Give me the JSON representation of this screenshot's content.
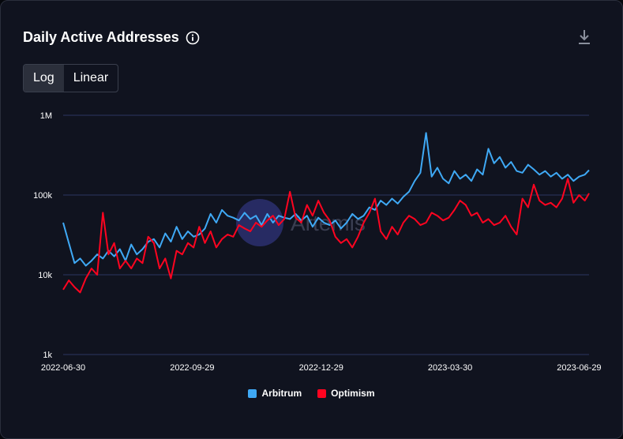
{
  "header": {
    "title": "Daily Active Addresses",
    "info_icon": "info-circle-icon",
    "download_icon": "download-icon"
  },
  "scale_toggle": {
    "options": [
      "Log",
      "Linear"
    ],
    "selected": "Log"
  },
  "watermark": "Artemis",
  "colors": {
    "arbitrum": "#3fa9f5",
    "optimism": "#ff0420",
    "grid": "#2c3560",
    "background": "#10131f"
  },
  "chart_data": {
    "type": "line",
    "title": "Daily Active Addresses",
    "yscale": "log",
    "ylim": [
      1000,
      1000000
    ],
    "yticks": [
      {
        "value": 1000,
        "label": "1k"
      },
      {
        "value": 10000,
        "label": "10k"
      },
      {
        "value": 100000,
        "label": "100k"
      },
      {
        "value": 1000000,
        "label": "1M"
      }
    ],
    "xlim": [
      "2022-06-30",
      "2023-07-06"
    ],
    "xticks": [
      "2022-06-30",
      "2022-09-29",
      "2022-12-29",
      "2023-03-30",
      "2023-06-29"
    ],
    "series": [
      {
        "name": "Arbitrum",
        "color": "#3fa9f5",
        "dates": [
          "2022-06-30",
          "2022-07-04",
          "2022-07-08",
          "2022-07-12",
          "2022-07-16",
          "2022-07-20",
          "2022-07-24",
          "2022-07-28",
          "2022-08-01",
          "2022-08-05",
          "2022-08-09",
          "2022-08-13",
          "2022-08-17",
          "2022-08-21",
          "2022-08-25",
          "2022-08-29",
          "2022-09-02",
          "2022-09-06",
          "2022-09-10",
          "2022-09-14",
          "2022-09-18",
          "2022-09-22",
          "2022-09-26",
          "2022-09-30",
          "2022-10-04",
          "2022-10-08",
          "2022-10-12",
          "2022-10-16",
          "2022-10-20",
          "2022-10-24",
          "2022-10-28",
          "2022-11-01",
          "2022-11-05",
          "2022-11-09",
          "2022-11-13",
          "2022-11-17",
          "2022-11-21",
          "2022-11-25",
          "2022-11-29",
          "2022-12-03",
          "2022-12-07",
          "2022-12-11",
          "2022-12-15",
          "2022-12-19",
          "2022-12-23",
          "2022-12-27",
          "2022-12-31",
          "2023-01-04",
          "2023-01-08",
          "2023-01-12",
          "2023-01-16",
          "2023-01-20",
          "2023-01-24",
          "2023-01-28",
          "2023-02-01",
          "2023-02-05",
          "2023-02-09",
          "2023-02-13",
          "2023-02-17",
          "2023-02-21",
          "2023-02-25",
          "2023-03-01",
          "2023-03-05",
          "2023-03-09",
          "2023-03-13",
          "2023-03-17",
          "2023-03-21",
          "2023-03-25",
          "2023-03-29",
          "2023-04-02",
          "2023-04-06",
          "2023-04-10",
          "2023-04-14",
          "2023-04-18",
          "2023-04-22",
          "2023-04-26",
          "2023-04-30",
          "2023-05-04",
          "2023-05-08",
          "2023-05-12",
          "2023-05-16",
          "2023-05-20",
          "2023-05-24",
          "2023-05-28",
          "2023-06-01",
          "2023-06-05",
          "2023-06-09",
          "2023-06-13",
          "2023-06-17",
          "2023-06-21",
          "2023-06-25",
          "2023-06-29",
          "2023-07-03",
          "2023-07-06"
        ],
        "values": [
          45000,
          25000,
          14000,
          16000,
          13000,
          15000,
          18000,
          16000,
          20000,
          17000,
          21000,
          15000,
          24000,
          18000,
          21000,
          26000,
          28000,
          22000,
          33000,
          26000,
          40000,
          28000,
          35000,
          30000,
          32000,
          38000,
          58000,
          45000,
          65000,
          55000,
          52000,
          48000,
          60000,
          50000,
          55000,
          42000,
          58000,
          45000,
          55000,
          52000,
          50000,
          58000,
          48000,
          55000,
          40000,
          52000,
          45000,
          42000,
          48000,
          38000,
          45000,
          58000,
          50000,
          55000,
          70000,
          65000,
          85000,
          75000,
          90000,
          78000,
          95000,
          110000,
          150000,
          190000,
          600000,
          170000,
          220000,
          160000,
          140000,
          200000,
          160000,
          180000,
          150000,
          210000,
          180000,
          380000,
          250000,
          300000,
          220000,
          260000,
          200000,
          190000,
          240000,
          210000,
          180000,
          200000,
          170000,
          190000,
          160000,
          180000,
          150000,
          170000,
          180000,
          205000
        ]
      },
      {
        "name": "Optimism",
        "color": "#ff0420",
        "dates": [
          "2022-06-30",
          "2022-07-04",
          "2022-07-08",
          "2022-07-12",
          "2022-07-16",
          "2022-07-20",
          "2022-07-24",
          "2022-07-28",
          "2022-08-01",
          "2022-08-05",
          "2022-08-09",
          "2022-08-13",
          "2022-08-17",
          "2022-08-21",
          "2022-08-25",
          "2022-08-29",
          "2022-09-02",
          "2022-09-06",
          "2022-09-10",
          "2022-09-14",
          "2022-09-18",
          "2022-09-22",
          "2022-09-26",
          "2022-09-30",
          "2022-10-04",
          "2022-10-08",
          "2022-10-12",
          "2022-10-16",
          "2022-10-20",
          "2022-10-24",
          "2022-10-28",
          "2022-11-01",
          "2022-11-05",
          "2022-11-09",
          "2022-11-13",
          "2022-11-17",
          "2022-11-21",
          "2022-11-25",
          "2022-11-29",
          "2022-12-03",
          "2022-12-07",
          "2022-12-11",
          "2022-12-15",
          "2022-12-19",
          "2022-12-23",
          "2022-12-27",
          "2022-12-31",
          "2023-01-04",
          "2023-01-08",
          "2023-01-12",
          "2023-01-16",
          "2023-01-20",
          "2023-01-24",
          "2023-01-28",
          "2023-02-01",
          "2023-02-05",
          "2023-02-09",
          "2023-02-13",
          "2023-02-17",
          "2023-02-21",
          "2023-02-25",
          "2023-03-01",
          "2023-03-05",
          "2023-03-09",
          "2023-03-13",
          "2023-03-17",
          "2023-03-21",
          "2023-03-25",
          "2023-03-29",
          "2023-04-02",
          "2023-04-06",
          "2023-04-10",
          "2023-04-14",
          "2023-04-18",
          "2023-04-22",
          "2023-04-26",
          "2023-04-30",
          "2023-05-04",
          "2023-05-08",
          "2023-05-12",
          "2023-05-16",
          "2023-05-20",
          "2023-05-24",
          "2023-05-28",
          "2023-06-01",
          "2023-06-05",
          "2023-06-09",
          "2023-06-13",
          "2023-06-17",
          "2023-06-21",
          "2023-06-25",
          "2023-06-29",
          "2023-07-03",
          "2023-07-06"
        ],
        "values": [
          6500,
          8500,
          7000,
          6000,
          9000,
          12000,
          10000,
          60000,
          18000,
          25000,
          12000,
          15000,
          12000,
          16000,
          14000,
          30000,
          25000,
          12000,
          16000,
          9000,
          20000,
          18000,
          25000,
          22000,
          40000,
          25000,
          35000,
          22000,
          28000,
          32000,
          30000,
          42000,
          38000,
          35000,
          45000,
          40000,
          48000,
          55000,
          42000,
          50000,
          110000,
          52000,
          45000,
          75000,
          55000,
          85000,
          60000,
          48000,
          30000,
          25000,
          28000,
          22000,
          30000,
          45000,
          60000,
          90000,
          35000,
          28000,
          40000,
          32000,
          45000,
          55000,
          50000,
          42000,
          45000,
          60000,
          55000,
          48000,
          52000,
          65000,
          85000,
          75000,
          55000,
          60000,
          45000,
          50000,
          42000,
          45000,
          55000,
          40000,
          32000,
          90000,
          70000,
          135000,
          85000,
          75000,
          80000,
          70000,
          90000,
          160000,
          80000,
          100000,
          85000,
          105000
        ]
      }
    ]
  }
}
